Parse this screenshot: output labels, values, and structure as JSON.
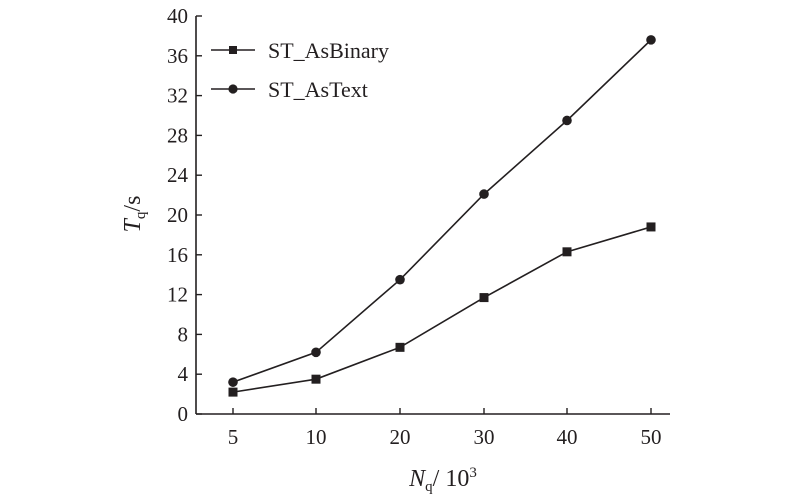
{
  "chart_data": {
    "type": "line",
    "categories": [
      "5",
      "10",
      "20",
      "30",
      "40",
      "50"
    ],
    "series": [
      {
        "name": "ST_AsBinary",
        "marker": "square",
        "values": [
          2.2,
          3.5,
          6.7,
          11.7,
          16.3,
          18.8
        ]
      },
      {
        "name": "ST_AsText",
        "marker": "circle",
        "values": [
          3.2,
          6.2,
          13.5,
          22.1,
          29.5,
          37.6
        ]
      }
    ],
    "xlabel": {
      "symbol": "N",
      "subscript": "q",
      "unit": "/ 10",
      "exponent": "3"
    },
    "ylabel": {
      "symbol": "T",
      "subscript": "q",
      "unit": "/s"
    },
    "ylim": [
      0,
      40
    ],
    "yticks": [
      "0",
      "4",
      "8",
      "12",
      "16",
      "20",
      "24",
      "28",
      "32",
      "36",
      "40"
    ],
    "grid": false,
    "legend": "top-left",
    "colors": {
      "line": "#231f20",
      "background": "#ffffff"
    }
  }
}
